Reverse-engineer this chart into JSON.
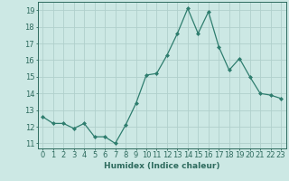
{
  "x": [
    0,
    1,
    2,
    3,
    4,
    5,
    6,
    7,
    8,
    9,
    10,
    11,
    12,
    13,
    14,
    15,
    16,
    17,
    18,
    19,
    20,
    21,
    22,
    23
  ],
  "y": [
    12.6,
    12.2,
    12.2,
    11.9,
    12.2,
    11.4,
    11.4,
    11.0,
    12.1,
    13.4,
    15.1,
    15.2,
    16.3,
    17.6,
    19.1,
    17.6,
    18.9,
    16.8,
    15.4,
    16.1,
    15.0,
    14.0,
    13.9,
    13.7
  ],
  "line_color": "#2e7d6e",
  "marker": "D",
  "marker_size": 2,
  "bg_color": "#cce8e4",
  "grid_color": "#b0d0cc",
  "xlabel": "Humidex (Indice chaleur)",
  "xlim": [
    -0.5,
    23.5
  ],
  "ylim": [
    10.7,
    19.5
  ],
  "yticks": [
    11,
    12,
    13,
    14,
    15,
    16,
    17,
    18,
    19
  ],
  "xticks": [
    0,
    1,
    2,
    3,
    4,
    5,
    6,
    7,
    8,
    9,
    10,
    11,
    12,
    13,
    14,
    15,
    16,
    17,
    18,
    19,
    20,
    21,
    22,
    23
  ],
  "xlabel_fontsize": 6.5,
  "tick_fontsize": 6,
  "axis_color": "#2e6b5e"
}
